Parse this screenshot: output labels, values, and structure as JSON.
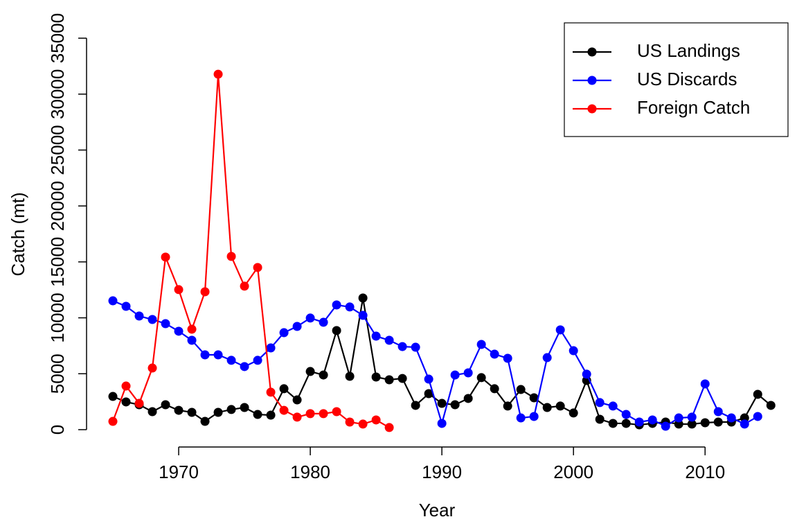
{
  "chart_data": {
    "type": "line",
    "x_label": "Year",
    "y_label": "Catch (mt)",
    "x": [
      1965,
      1966,
      1967,
      1968,
      1969,
      1970,
      1971,
      1972,
      1973,
      1974,
      1975,
      1976,
      1977,
      1978,
      1979,
      1980,
      1981,
      1982,
      1983,
      1984,
      1985,
      1986,
      1987,
      1988,
      1989,
      1990,
      1991,
      1992,
      1993,
      1994,
      1995,
      1996,
      1997,
      1998,
      1999,
      2000,
      2001,
      2002,
      2003,
      2004,
      2005,
      2006,
      2007,
      2008,
      2009,
      2010,
      2011,
      2012,
      2013,
      2014,
      2015
    ],
    "series": [
      {
        "name": "US Landings",
        "color": "#000000",
        "values": [
          2970,
          2480,
          2230,
          1610,
          2230,
          1730,
          1550,
          740,
          1550,
          1800,
          1980,
          1360,
          1300,
          3660,
          2660,
          5200,
          4890,
          8860,
          4770,
          11770,
          4710,
          4460,
          4580,
          2170,
          3220,
          2350,
          2230,
          2790,
          4650,
          3660,
          2110,
          3590,
          2850,
          1980,
          2110,
          1490,
          4400,
          930,
          560,
          560,
          430,
          560,
          680,
          500,
          500,
          620,
          680,
          680,
          1050,
          3160,
          2170
        ]
      },
      {
        "name": "US Discards",
        "color": "#0000ff",
        "values": [
          11520,
          11030,
          10160,
          9850,
          9480,
          8800,
          7990,
          6690,
          6690,
          6200,
          5640,
          6200,
          7310,
          8670,
          9230,
          9980,
          9600,
          11150,
          10970,
          10220,
          8360,
          7990,
          7430,
          7370,
          4520,
          560,
          4890,
          5080,
          7620,
          6750,
          6380,
          1050,
          1180,
          6440,
          8920,
          7060,
          4960,
          2420,
          2110,
          1360,
          680,
          870,
          310,
          1050,
          1120,
          4090,
          1610,
          1050,
          500,
          1180,
          null
        ]
      },
      {
        "name": "Foreign Catch",
        "color": "#ff0000",
        "values": [
          740,
          3900,
          2350,
          5510,
          15430,
          12520,
          8980,
          12330,
          31780,
          15490,
          12830,
          14500,
          3350,
          1730,
          1120,
          1430,
          1430,
          1610,
          680,
          500,
          870,
          190,
          null,
          null,
          null,
          null,
          null,
          null,
          null,
          null,
          null,
          null,
          null,
          null,
          null,
          null,
          null,
          null,
          null,
          null,
          null,
          null,
          null,
          null,
          null,
          null,
          null,
          null,
          null,
          null,
          null
        ]
      }
    ],
    "xlim": [
      1963,
      2016.3
    ],
    "xticks": [
      1970,
      1980,
      1990,
      2000,
      2010
    ],
    "ylim": [
      -1550,
      36370
    ],
    "yticks": [
      0,
      5000,
      10000,
      15000,
      20000,
      25000,
      30000,
      35000
    ],
    "legend": "top-right"
  }
}
